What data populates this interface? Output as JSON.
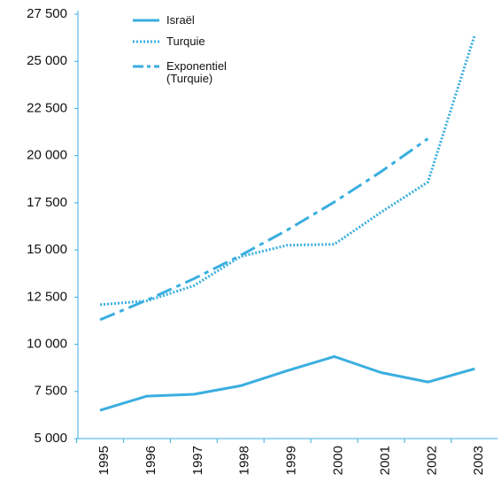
{
  "chart_data": {
    "type": "line",
    "categories": [
      "1995",
      "1996",
      "1997",
      "1998",
      "1999",
      "2000",
      "2001",
      "2002",
      "2003"
    ],
    "series": [
      {
        "name": "Israël",
        "color": "#3aaee0",
        "style": "solid",
        "values": [
          6500,
          7250,
          7350,
          7800,
          8600,
          9350,
          8500,
          8000,
          8700
        ]
      },
      {
        "name": "Turquie",
        "color": "#3aaee0",
        "style": "dotted",
        "values": [
          12100,
          12300,
          13100,
          14650,
          15250,
          15300,
          17000,
          18600,
          26400
        ]
      },
      {
        "name": "Exponentiel (Turquie)",
        "color": "#3aaee0",
        "style": "dashdot",
        "values": [
          11300,
          12340,
          13470,
          14710,
          16060,
          17540,
          19150,
          20900,
          null
        ]
      }
    ],
    "ylim": [
      5000,
      27500
    ],
    "yticks": [
      {
        "value": 5000,
        "label": "5 000"
      },
      {
        "value": 7500,
        "label": "7 500"
      },
      {
        "value": 10000,
        "label": "10 000"
      },
      {
        "value": 12500,
        "label": "12 500"
      },
      {
        "value": 15000,
        "label": "15 000"
      },
      {
        "value": 17500,
        "label": "17 500"
      },
      {
        "value": 20000,
        "label": "20 000"
      },
      {
        "value": 22500,
        "label": "22 500"
      },
      {
        "value": 25000,
        "label": "25 000"
      },
      {
        "value": 27500,
        "label": "27 500"
      }
    ],
    "legend": "top-left"
  }
}
